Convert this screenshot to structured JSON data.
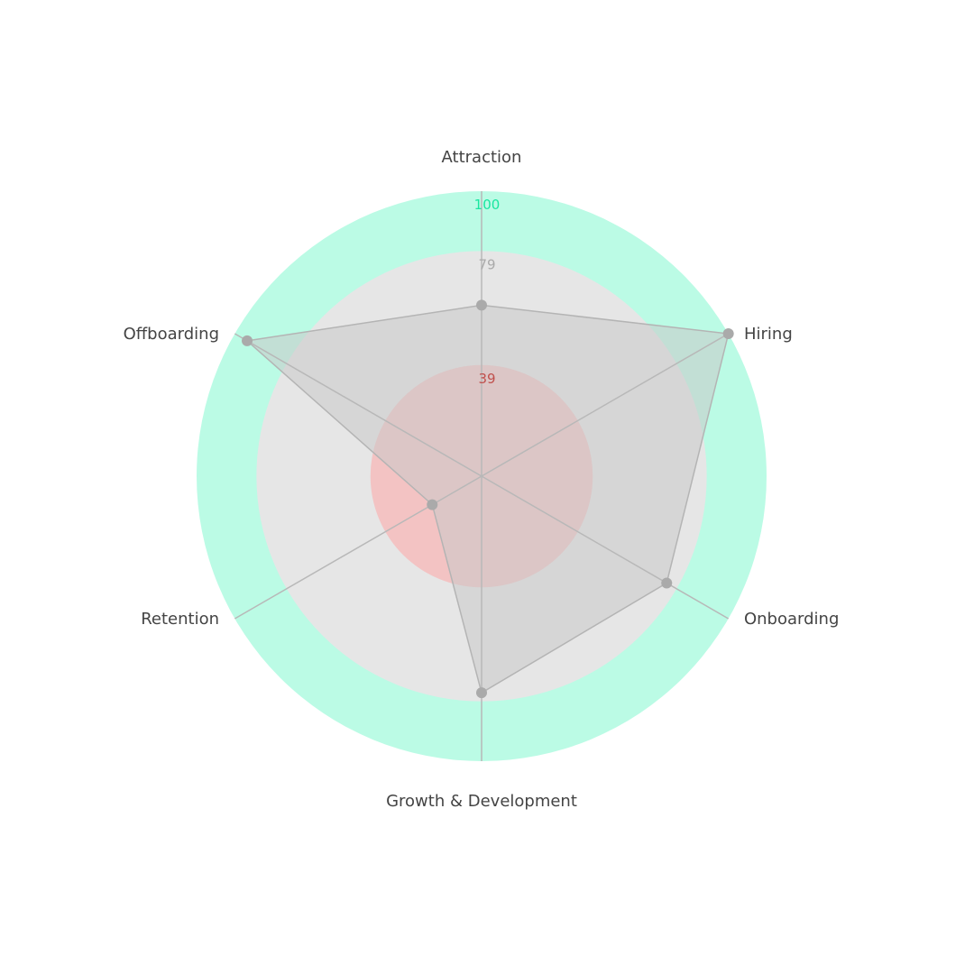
{
  "chart_data": {
    "type": "radar",
    "scale": [
      0,
      100
    ],
    "axes": [
      "Attraction",
      "Hiring",
      "Onboarding",
      "Growth & Development",
      "Retention",
      "Offboarding"
    ],
    "values": [
      60,
      100,
      75,
      76,
      20,
      95
    ],
    "bands": [
      {
        "label": "39",
        "value": 39,
        "color": "#f3c3c3",
        "label_color": "#c0504d"
      },
      {
        "label": "79",
        "value": 79,
        "color": "#e6e6e6",
        "label_color": "#aaaaaa"
      },
      {
        "label": "100",
        "value": 100,
        "color": "#bbfbe5",
        "label_color": "#19e6a0"
      }
    ],
    "series_fill": "#c8c8c8",
    "series_stroke": "#b4b4b4",
    "point_color": "#aaaaaa",
    "spoke_color": "#b8b8b8"
  }
}
